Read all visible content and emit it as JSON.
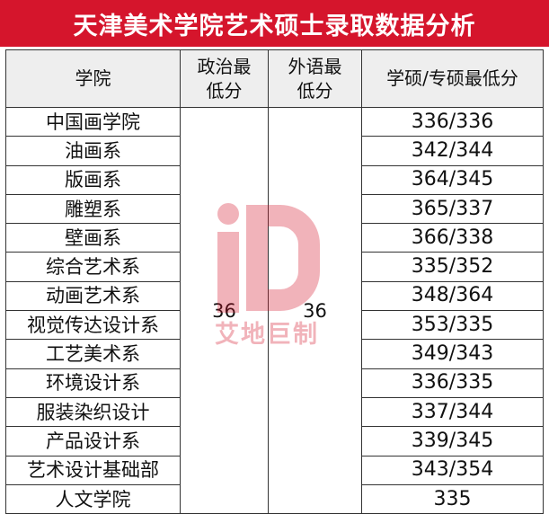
{
  "title": "天津美术学院艺术硕士录取数据分析",
  "headers": {
    "college": "学院",
    "politics": "政治最\n低分",
    "foreign": "外语最\n低分",
    "score": "学硕/专硕最低分"
  },
  "politics_min": "36",
  "foreign_min": "36",
  "rows": [
    {
      "college": "中国画学院",
      "score": "336/336"
    },
    {
      "college": "油画系",
      "score": "342/344"
    },
    {
      "college": "版画系",
      "score": "364/345"
    },
    {
      "college": "雕塑系",
      "score": "365/337"
    },
    {
      "college": "壁画系",
      "score": "366/338"
    },
    {
      "college": "综合艺术系",
      "score": "335/352"
    },
    {
      "college": "动画艺术系",
      "score": "348/364"
    },
    {
      "college": "视觉传达设计系",
      "score": "353/335"
    },
    {
      "college": "工艺美术系",
      "score": "349/343"
    },
    {
      "college": "环境设计系",
      "score": "336/335"
    },
    {
      "college": "服装染织设计",
      "score": "337/344"
    },
    {
      "college": "产品设计系",
      "score": "339/345"
    },
    {
      "college": "艺术设计基础部",
      "score": "343/354"
    },
    {
      "college": "人文学院",
      "score": "335"
    }
  ],
  "watermark": {
    "logo_text": "iD",
    "brand_text": "艾地巨制",
    "color": "#d5152c"
  },
  "colors": {
    "title_bg": "#d5152c",
    "header_bg": "#eeeeee"
  }
}
